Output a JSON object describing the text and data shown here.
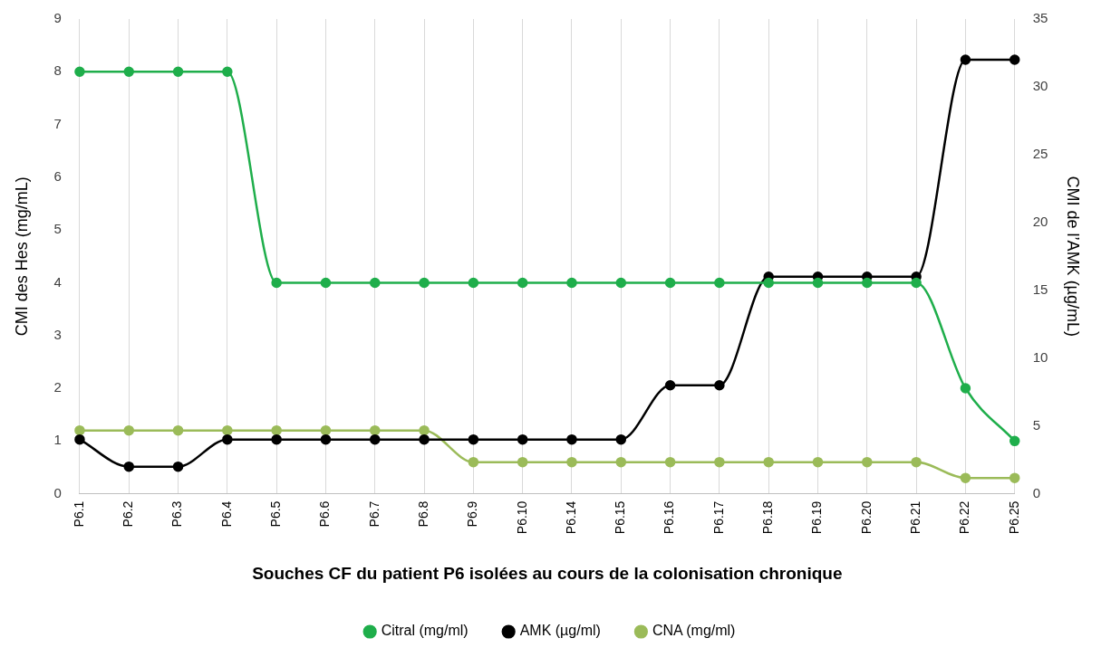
{
  "chart_data": {
    "type": "line",
    "xlabel": "Souches CF du patient P6 isolées au cours de la colonisation chronique",
    "ylabel": "CMI des Hes (mg/mL)",
    "y2label": "CMI de l’AMK (µg/mL)",
    "categories": [
      "P6.1",
      "P6.2",
      "P6.3",
      "P6.4",
      "P6.5",
      "P6.6",
      "P6.7",
      "P6.8",
      "P6.9",
      "P6.10",
      "P6.14",
      "P6.15",
      "P6.16",
      "P6.17",
      "P6.18",
      "P6.19",
      "P6.20",
      "P6.21",
      "P6.22",
      "P6.25"
    ],
    "series": [
      {
        "name": "Citral (mg/ml)",
        "color": "#1fae4b",
        "values": [
          8,
          8,
          8,
          8,
          4,
          4,
          4,
          4,
          4,
          4,
          4,
          4,
          4,
          4,
          4,
          4,
          4,
          4,
          2,
          1
        ]
      },
      {
        "name": "AMK (µg/ml)",
        "color": "#000000",
        "axis": "y2",
        "values": [
          4,
          2,
          2,
          4,
          4,
          4,
          4,
          4,
          4,
          4,
          4,
          4,
          8,
          8,
          16,
          16,
          16,
          16,
          32,
          32
        ]
      },
      {
        "name": "CNA (mg/ml)",
        "color": "#9bbb59",
        "values": [
          1.2,
          1.2,
          1.2,
          1.2,
          1.2,
          1.2,
          1.2,
          1.2,
          0.6,
          0.6,
          0.6,
          0.6,
          0.6,
          0.6,
          0.6,
          0.6,
          0.6,
          0.6,
          0.3,
          0.3
        ]
      }
    ],
    "ylim": [
      0,
      9
    ],
    "yticks": [
      0,
      1,
      2,
      3,
      4,
      5,
      6,
      7,
      8,
      9
    ],
    "y2lim": [
      0,
      35
    ],
    "y2ticks": [
      0,
      5,
      10,
      15,
      20,
      25,
      30,
      35
    ],
    "grid": "x",
    "legend": "bottom",
    "marker": "circle"
  }
}
